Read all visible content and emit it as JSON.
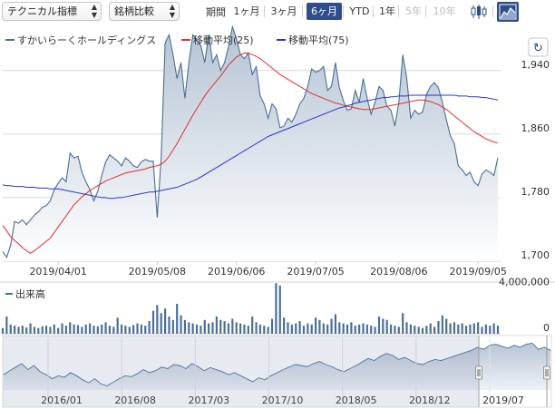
{
  "toolbar": {
    "indicator_select": "テクニカル指標",
    "compare_select": "銘柄比較",
    "period_label": "期間",
    "periods": [
      {
        "label": "1ヶ月",
        "state": "normal"
      },
      {
        "label": "3ヶ月",
        "state": "normal"
      },
      {
        "label": "6ヶ月",
        "state": "active"
      },
      {
        "label": "YTD",
        "state": "normal"
      },
      {
        "label": "1年",
        "state": "normal"
      },
      {
        "label": "5年",
        "state": "disabled"
      },
      {
        "label": "10年",
        "state": "disabled"
      }
    ],
    "chart_type_icons": [
      "candlestick-icon",
      "area-chart-icon"
    ],
    "active_chart_type": "area-chart-icon"
  },
  "reset_icon": "refresh-icon",
  "colors": {
    "price": "#4a6e96",
    "price_fill_top": "#b4c3d4",
    "ma25": "#e0312c",
    "ma75": "#2b34c8",
    "volume": "#4a6e96",
    "grid": "#d6d6d6",
    "active": "#2e4d8a"
  },
  "chart_data": [
    {
      "type": "area",
      "legend": [
        "すかいらーくホールディングス",
        "移動平均(25)",
        "移動平均(75)"
      ],
      "ylim": [
        1700,
        1990
      ],
      "y_ticks": [
        1700,
        1780,
        1860,
        1940
      ],
      "y_tick_labels": [
        "1,700",
        "1,780",
        "1,860",
        "1,940"
      ],
      "x_tick_labels": [
        "2019/04/01",
        "2019/05/08",
        "2019/06/06",
        "2019/07/05",
        "2019/08/06",
        "2019/09/05"
      ],
      "x_tick_index": [
        14,
        39,
        59,
        79,
        100,
        120
      ],
      "grid": true,
      "legend_position": "top-left",
      "series": [
        {
          "name": "すかいらーくホールディングス",
          "values": [
            1712,
            1705,
            1720,
            1750,
            1748,
            1752,
            1746,
            1752,
            1758,
            1762,
            1768,
            1770,
            1776,
            1790,
            1798,
            1805,
            1800,
            1836,
            1830,
            1832,
            1812,
            1800,
            1790,
            1776,
            1788,
            1808,
            1825,
            1834,
            1830,
            1826,
            1820,
            1830,
            1826,
            1820,
            1818,
            1825,
            1828,
            1826,
            1826,
            1755,
            1830,
            1975,
            1985,
            1960,
            1930,
            1950,
            1905,
            1950,
            1985,
            1978,
            1972,
            1950,
            1985,
            1950,
            1960,
            1940,
            1950,
            1970,
            1995,
            1980,
            1960,
            1955,
            1962,
            1935,
            1945,
            1908,
            1898,
            1880,
            1898,
            1892,
            1868,
            1870,
            1880,
            1875,
            1885,
            1898,
            1905,
            1920,
            1942,
            1938,
            1940,
            1945,
            1915,
            1920,
            1950,
            1918,
            1902,
            1890,
            1892,
            1915,
            1900,
            1930,
            1905,
            1885,
            1900,
            1920,
            1915,
            1895,
            1890,
            1870,
            1900,
            1960,
            1930,
            1880,
            1890,
            1885,
            1888,
            1910,
            1920,
            1925,
            1918,
            1900,
            1878,
            1858,
            1848,
            1820,
            1815,
            1808,
            1812,
            1800,
            1795,
            1810,
            1815,
            1812,
            1808,
            1830
          ],
          "color": "#4a6e96"
        },
        {
          "name": "移動平均(25)",
          "values": [
            1745,
            1738,
            1731,
            1726,
            1722,
            1717,
            1713,
            1710,
            1713,
            1717,
            1721,
            1725,
            1729,
            1736,
            1743,
            1750,
            1757,
            1764,
            1771,
            1776,
            1781,
            1785,
            1789,
            1792,
            1795,
            1798,
            1801,
            1803,
            1805,
            1807,
            1809,
            1811,
            1812,
            1813,
            1814,
            1815,
            1816,
            1818,
            1819,
            1820,
            1822,
            1826,
            1832,
            1840,
            1848,
            1857,
            1866,
            1875,
            1884,
            1892,
            1900,
            1908,
            1915,
            1921,
            1927,
            1933,
            1940,
            1947,
            1952,
            1957,
            1960,
            1962,
            1962,
            1960,
            1958,
            1955,
            1951,
            1947,
            1943,
            1939,
            1935,
            1932,
            1929,
            1926,
            1923,
            1920,
            1917,
            1914,
            1911,
            1909,
            1907,
            1905,
            1903,
            1901,
            1899,
            1898,
            1896,
            1895,
            1894,
            1893,
            1892,
            1891,
            1891,
            1891,
            1892,
            1893,
            1894,
            1895,
            1896,
            1897,
            1898,
            1899,
            1900,
            1901,
            1902,
            1903,
            1903,
            1902,
            1901,
            1899,
            1897,
            1894,
            1891,
            1887,
            1883,
            1879,
            1875,
            1871,
            1867,
            1863,
            1860,
            1857,
            1854,
            1852,
            1850,
            1849
          ],
          "color": "#e0312c"
        },
        {
          "name": "移動平均(75)",
          "values": [
            1796,
            1795,
            1795,
            1794,
            1794,
            1794,
            1793,
            1793,
            1793,
            1792,
            1792,
            1792,
            1791,
            1791,
            1791,
            1790,
            1789,
            1788,
            1787,
            1786,
            1785,
            1784,
            1783,
            1782,
            1781,
            1780,
            1780,
            1779,
            1779,
            1780,
            1780,
            1781,
            1782,
            1783,
            1784,
            1785,
            1786,
            1787,
            1787,
            1788,
            1789,
            1790,
            1791,
            1792,
            1793,
            1795,
            1797,
            1799,
            1801,
            1803,
            1806,
            1809,
            1812,
            1815,
            1818,
            1821,
            1824,
            1827,
            1830,
            1833,
            1836,
            1839,
            1842,
            1845,
            1848,
            1851,
            1854,
            1857,
            1859,
            1861,
            1863,
            1865,
            1867,
            1869,
            1871,
            1873,
            1875,
            1877,
            1879,
            1881,
            1883,
            1885,
            1887,
            1889,
            1891,
            1893,
            1894,
            1896,
            1897,
            1899,
            1900,
            1901,
            1902,
            1903,
            1904,
            1905,
            1906,
            1906,
            1907,
            1907,
            1908,
            1908,
            1908,
            1909,
            1909,
            1909,
            1909,
            1909,
            1909,
            1909,
            1909,
            1909,
            1909,
            1909,
            1909,
            1908,
            1908,
            1908,
            1907,
            1907,
            1907,
            1906,
            1906,
            1905,
            1904,
            1903
          ],
          "color": "#2b34c8"
        }
      ]
    },
    {
      "type": "bar",
      "legend": [
        "出来高"
      ],
      "ylim": [
        0,
        4500000
      ],
      "y_ticks": [
        0,
        4000000
      ],
      "y_tick_labels": [
        "0",
        "4,000,000"
      ],
      "series": [
        {
          "name": "出来高",
          "values": [
            500000,
            1500000,
            800000,
            700000,
            600000,
            700000,
            550000,
            900000,
            600000,
            500000,
            650000,
            700000,
            600000,
            800000,
            500000,
            900000,
            700000,
            1000000,
            800000,
            750000,
            600000,
            800000,
            900000,
            700000,
            650000,
            800000,
            1000000,
            700000,
            600000,
            1400000,
            800000,
            700000,
            600000,
            750000,
            900000,
            800000,
            700000,
            1100000,
            2000000,
            2500000,
            1800000,
            2200000,
            1500000,
            1200000,
            2600000,
            1600000,
            1200000,
            1000000,
            900000,
            800000,
            700000,
            1200000,
            900000,
            1000000,
            1500000,
            1200000,
            1100000,
            900000,
            1300000,
            1000000,
            900000,
            800000,
            700000,
            1500000,
            1000000,
            800000,
            700000,
            600000,
            1300000,
            4400000,
            4200000,
            1400000,
            1000000,
            800000,
            900000,
            1100000,
            700000,
            900000,
            800000,
            1400000,
            1200000,
            900000,
            800000,
            1300000,
            1700000,
            1000000,
            900000,
            800000,
            1000000,
            700000,
            800000,
            900000,
            800000,
            700000,
            600000,
            1500000,
            1300000,
            1200000,
            800000,
            700000,
            600000,
            1800000,
            1000000,
            800000,
            700000,
            600000,
            500000,
            700000,
            900000,
            600000,
            1100000,
            1600000,
            1300000,
            900000,
            1000000,
            800000,
            900000,
            700000,
            800000,
            900000,
            1000000,
            600000,
            800000,
            700000,
            900000,
            700000
          ],
          "color": "#4a6e96"
        }
      ]
    },
    {
      "type": "area",
      "role": "navigator",
      "x_tick_labels": [
        "2016/01",
        "2016/08",
        "2017/03",
        "2017/10",
        "2018/05",
        "2018/12",
        "2019/07"
      ],
      "values": [
        0.3,
        0.38,
        0.45,
        0.52,
        0.4,
        0.48,
        0.36,
        0.3,
        0.22,
        0.28,
        0.25,
        0.34,
        0.28,
        0.2,
        0.14,
        0.22,
        0.12,
        0.08,
        0.15,
        0.22,
        0.28,
        0.26,
        0.32,
        0.4,
        0.34,
        0.38,
        0.45,
        0.42,
        0.5,
        0.48,
        0.42,
        0.52,
        0.46,
        0.38,
        0.44,
        0.4,
        0.36,
        0.3,
        0.34,
        0.28,
        0.22,
        0.16,
        0.24,
        0.2,
        0.28,
        0.34,
        0.4,
        0.45,
        0.5,
        0.48,
        0.46,
        0.52,
        0.56,
        0.5,
        0.46,
        0.4,
        0.36,
        0.42,
        0.48,
        0.55,
        0.62,
        0.58,
        0.66,
        0.72,
        0.68,
        0.6,
        0.64,
        0.58,
        0.52,
        0.5,
        0.56,
        0.6,
        0.58,
        0.62,
        0.66,
        0.7,
        0.74,
        0.78,
        0.84,
        0.8,
        0.88,
        0.9,
        0.86,
        0.82,
        0.88,
        0.84,
        0.9,
        0.92,
        0.8,
        0.84,
        0.78
      ],
      "selected_range": [
        "2019/03",
        "2019/09"
      ],
      "color": "#4a6e96"
    }
  ]
}
